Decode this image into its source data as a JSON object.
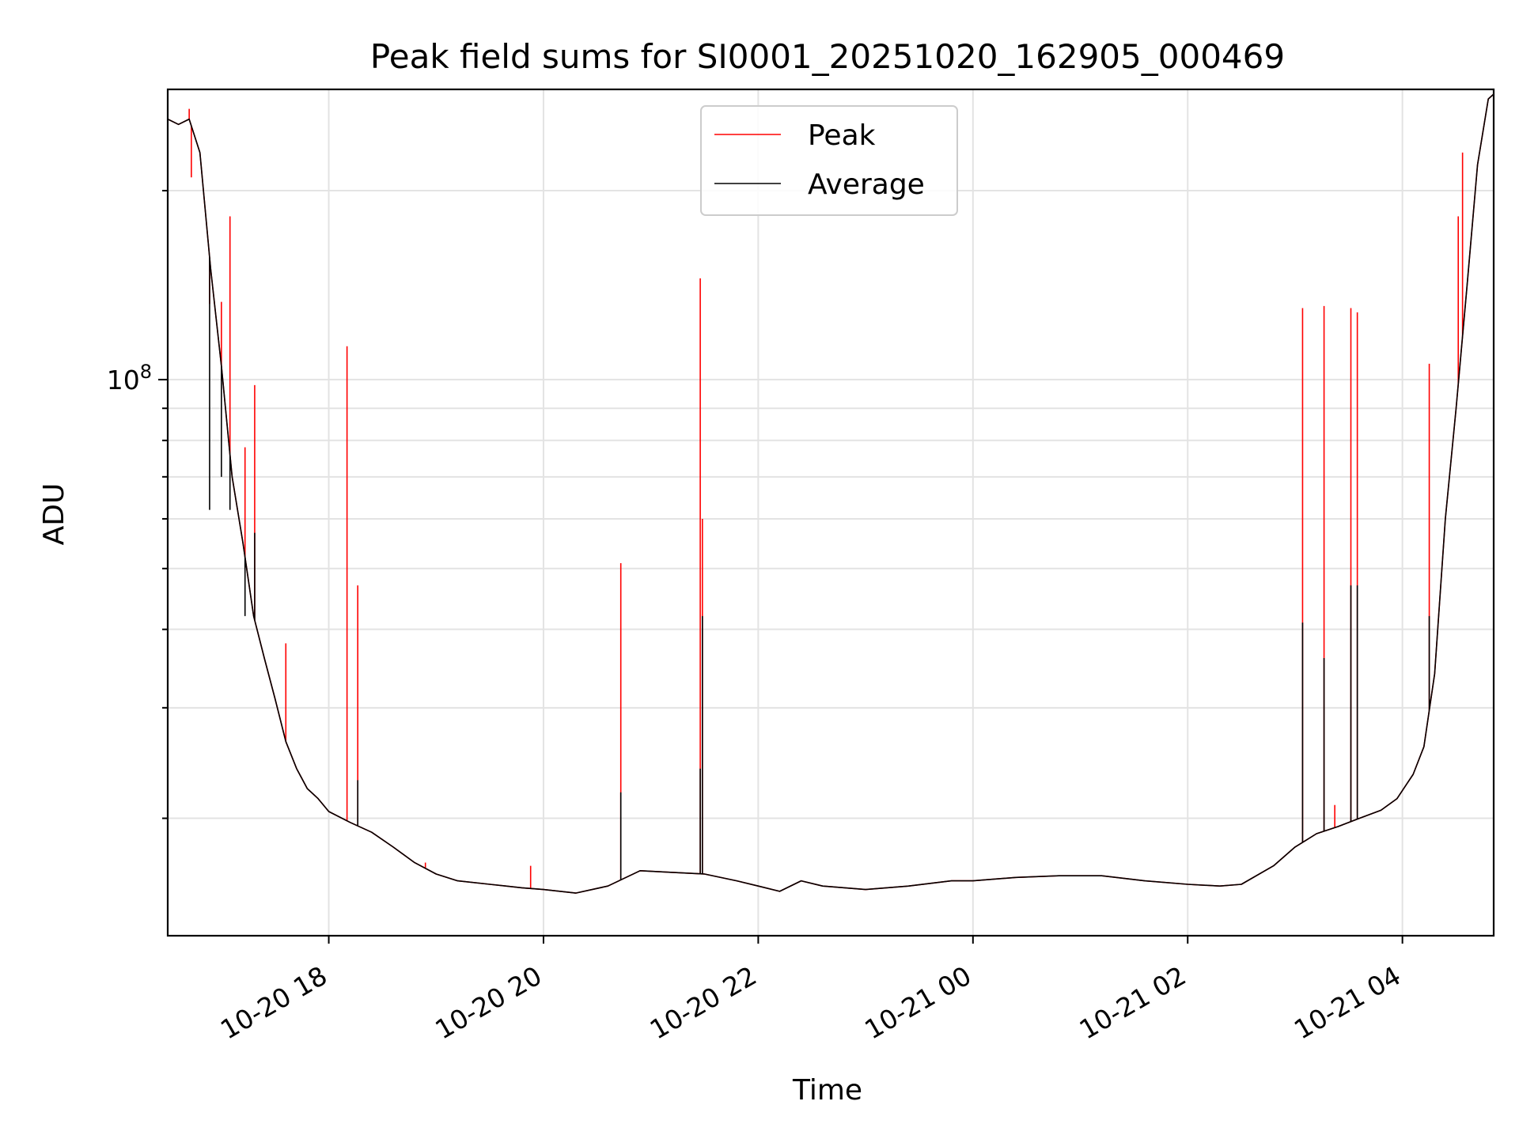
{
  "chart_data": {
    "type": "line",
    "title": "Peak field sums for SI0001_20251020_162905_000469",
    "xlabel": "Time",
    "ylabel": "ADU",
    "yscale": "log",
    "grid": true,
    "legend_position": "top-center",
    "xlim_hours": [
      -1.5,
      10.85
    ],
    "ylim": [
      13000000,
      290000000
    ],
    "x_ticks": [
      {
        "value": 0,
        "label": "10-20 18"
      },
      {
        "value": 2,
        "label": "10-20 20"
      },
      {
        "value": 4,
        "label": "10-20 22"
      },
      {
        "value": 6,
        "label": "10-21 00"
      },
      {
        "value": 8,
        "label": "10-21 02"
      },
      {
        "value": 10,
        "label": "10-21 04"
      }
    ],
    "y_major_ticks": [
      {
        "value": 100000000,
        "base": "10",
        "exp": "8"
      }
    ],
    "y_minor_ticks": [
      20000000,
      30000000,
      40000000,
      50000000,
      60000000,
      70000000,
      80000000,
      90000000,
      200000000
    ],
    "colors": {
      "peak": "#ff0000",
      "average": "#000000"
    },
    "series": [
      {
        "name": "Peak",
        "color": "#ff0000",
        "baseline": [
          [
            -1.5,
            260000000
          ],
          [
            -1.4,
            255000000
          ],
          [
            -1.3,
            260000000
          ],
          [
            -1.2,
            230000000
          ],
          [
            -1.1,
            150000000
          ],
          [
            -1.0,
            105000000
          ],
          [
            -0.9,
            70000000
          ],
          [
            -0.8,
            55000000
          ],
          [
            -0.7,
            42000000
          ],
          [
            -0.6,
            36000000
          ],
          [
            -0.5,
            31000000
          ],
          [
            -0.4,
            26500000
          ],
          [
            -0.3,
            24000000
          ],
          [
            -0.2,
            22300000
          ],
          [
            -0.1,
            21500000
          ],
          [
            0.0,
            20500000
          ],
          [
            0.2,
            19700000
          ],
          [
            0.4,
            19000000
          ],
          [
            0.6,
            18000000
          ],
          [
            0.8,
            17000000
          ],
          [
            1.0,
            16300000
          ],
          [
            1.2,
            15900000
          ],
          [
            1.5,
            15700000
          ],
          [
            1.8,
            15500000
          ],
          [
            2.0,
            15400000
          ],
          [
            2.3,
            15200000
          ],
          [
            2.6,
            15600000
          ],
          [
            2.9,
            16500000
          ],
          [
            3.2,
            16400000
          ],
          [
            3.5,
            16300000
          ],
          [
            3.8,
            15900000
          ],
          [
            4.0,
            15600000
          ],
          [
            4.2,
            15300000
          ],
          [
            4.4,
            15900000
          ],
          [
            4.6,
            15600000
          ],
          [
            5.0,
            15400000
          ],
          [
            5.4,
            15600000
          ],
          [
            5.8,
            15900000
          ],
          [
            6.0,
            15900000
          ],
          [
            6.4,
            16100000
          ],
          [
            6.8,
            16200000
          ],
          [
            7.2,
            16200000
          ],
          [
            7.6,
            15900000
          ],
          [
            8.0,
            15700000
          ],
          [
            8.3,
            15600000
          ],
          [
            8.5,
            15700000
          ],
          [
            8.8,
            16800000
          ],
          [
            9.0,
            18000000
          ],
          [
            9.2,
            18900000
          ],
          [
            9.4,
            19400000
          ],
          [
            9.6,
            20000000
          ],
          [
            9.8,
            20600000
          ],
          [
            9.95,
            21500000
          ],
          [
            10.1,
            23500000
          ],
          [
            10.2,
            26000000
          ],
          [
            10.3,
            34000000
          ],
          [
            10.4,
            60000000
          ],
          [
            10.5,
            90000000
          ],
          [
            10.6,
            140000000
          ],
          [
            10.7,
            220000000
          ],
          [
            10.8,
            280000000
          ],
          [
            10.85,
            285000000
          ]
        ],
        "spikes": [
          [
            -1.3,
            270000000
          ],
          [
            -1.28,
            210000000
          ],
          [
            -1.11,
            132000000
          ],
          [
            -1.0,
            133000000
          ],
          [
            -0.92,
            182000000
          ],
          [
            -0.78,
            78000000
          ],
          [
            -0.69,
            98000000
          ],
          [
            -0.4,
            38000000
          ],
          [
            0.17,
            113000000
          ],
          [
            0.27,
            47000000
          ],
          [
            0.9,
            17000000
          ],
          [
            1.88,
            16800000
          ],
          [
            2.72,
            51000000
          ],
          [
            3.46,
            145000000
          ],
          [
            3.48,
            60000000
          ],
          [
            9.07,
            130000000
          ],
          [
            9.27,
            131000000
          ],
          [
            9.37,
            21000000
          ],
          [
            9.52,
            130000000
          ],
          [
            9.58,
            128000000
          ],
          [
            10.25,
            106000000
          ],
          [
            10.52,
            182000000
          ],
          [
            10.56,
            230000000
          ]
        ]
      },
      {
        "name": "Average",
        "color": "#000000",
        "baseline": [
          [
            -1.5,
            260000000
          ],
          [
            -1.4,
            255000000
          ],
          [
            -1.3,
            260000000
          ],
          [
            -1.2,
            230000000
          ],
          [
            -1.1,
            150000000
          ],
          [
            -1.0,
            105000000
          ],
          [
            -0.9,
            70000000
          ],
          [
            -0.8,
            55000000
          ],
          [
            -0.7,
            42000000
          ],
          [
            -0.6,
            36000000
          ],
          [
            -0.5,
            31000000
          ],
          [
            -0.4,
            26500000
          ],
          [
            -0.3,
            24000000
          ],
          [
            -0.2,
            22300000
          ],
          [
            -0.1,
            21500000
          ],
          [
            0.0,
            20500000
          ],
          [
            0.2,
            19700000
          ],
          [
            0.4,
            19000000
          ],
          [
            0.6,
            18000000
          ],
          [
            0.8,
            17000000
          ],
          [
            1.0,
            16300000
          ],
          [
            1.2,
            15900000
          ],
          [
            1.5,
            15700000
          ],
          [
            1.8,
            15500000
          ],
          [
            2.0,
            15400000
          ],
          [
            2.3,
            15200000
          ],
          [
            2.6,
            15600000
          ],
          [
            2.9,
            16500000
          ],
          [
            3.2,
            16400000
          ],
          [
            3.5,
            16300000
          ],
          [
            3.8,
            15900000
          ],
          [
            4.0,
            15600000
          ],
          [
            4.2,
            15300000
          ],
          [
            4.4,
            15900000
          ],
          [
            4.6,
            15600000
          ],
          [
            5.0,
            15400000
          ],
          [
            5.4,
            15600000
          ],
          [
            5.8,
            15900000
          ],
          [
            6.0,
            15900000
          ],
          [
            6.4,
            16100000
          ],
          [
            6.8,
            16200000
          ],
          [
            7.2,
            16200000
          ],
          [
            7.6,
            15900000
          ],
          [
            8.0,
            15700000
          ],
          [
            8.3,
            15600000
          ],
          [
            8.5,
            15700000
          ],
          [
            8.8,
            16800000
          ],
          [
            9.0,
            18000000
          ],
          [
            9.2,
            18900000
          ],
          [
            9.4,
            19400000
          ],
          [
            9.6,
            20000000
          ],
          [
            9.8,
            20600000
          ],
          [
            9.95,
            21500000
          ],
          [
            10.1,
            23500000
          ],
          [
            10.2,
            26000000
          ],
          [
            10.3,
            34000000
          ],
          [
            10.4,
            60000000
          ],
          [
            10.5,
            90000000
          ],
          [
            10.6,
            140000000
          ],
          [
            10.7,
            220000000
          ],
          [
            10.8,
            280000000
          ],
          [
            10.85,
            285000000
          ]
        ],
        "spikes": [
          [
            -1.11,
            62000000
          ],
          [
            -1.0,
            70000000
          ],
          [
            -0.92,
            62000000
          ],
          [
            -0.78,
            42000000
          ],
          [
            -0.69,
            57000000
          ],
          [
            0.27,
            23000000
          ],
          [
            2.72,
            22000000
          ],
          [
            3.46,
            24000000
          ],
          [
            3.48,
            42000000
          ],
          [
            9.07,
            41000000
          ],
          [
            9.27,
            36000000
          ],
          [
            9.52,
            47000000
          ],
          [
            9.58,
            47000000
          ],
          [
            10.25,
            42000000
          ]
        ]
      }
    ]
  }
}
